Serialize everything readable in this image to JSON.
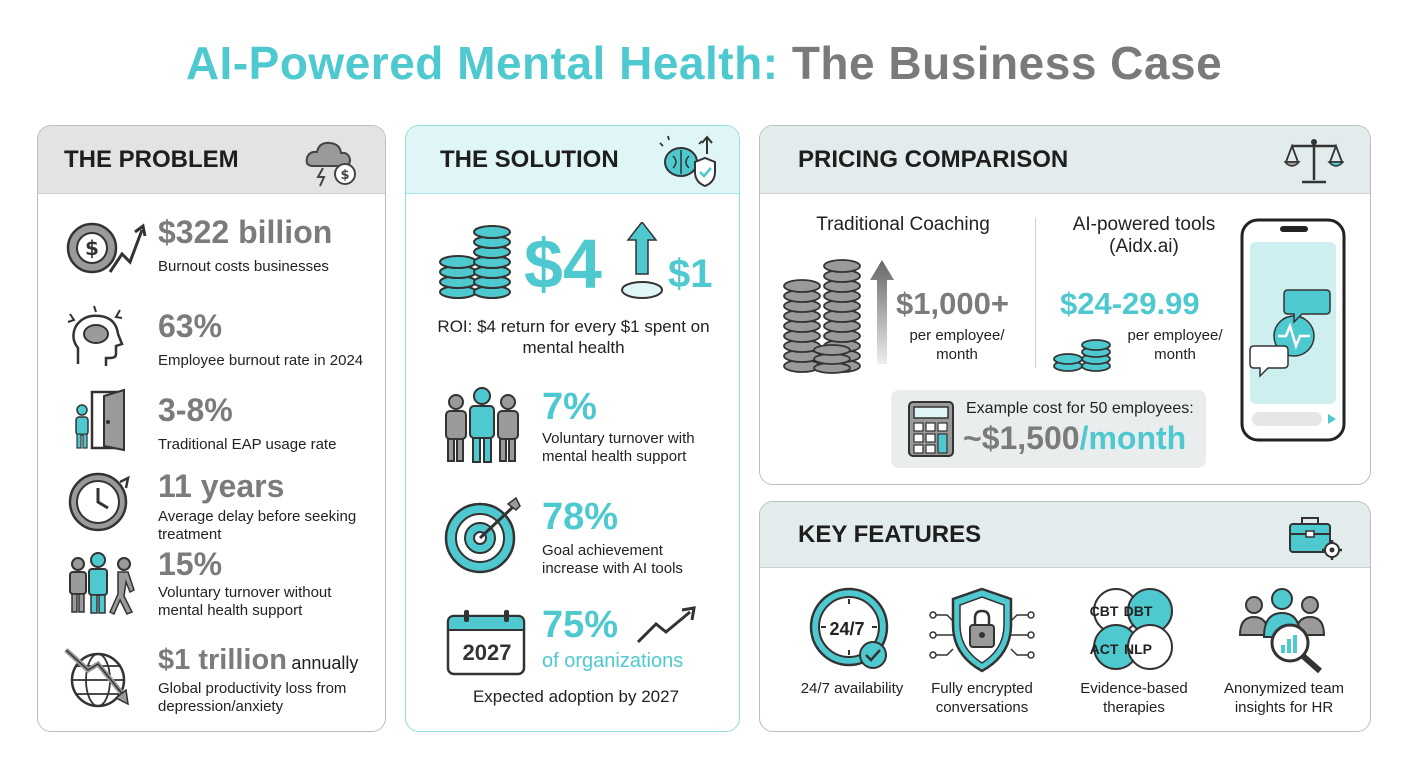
{
  "title": {
    "part1": "AI-Powered Mental Health:",
    "part2": "The Business Case"
  },
  "problem": {
    "heading": "THE PROBLEM",
    "items": [
      {
        "stat": "$322 billion",
        "desc": "Burnout costs businesses",
        "icon": "dollar-cycle-icon"
      },
      {
        "stat": "63%",
        "desc": "Employee burnout rate in 2024",
        "icon": "stressed-head-icon"
      },
      {
        "stat": "3-8%",
        "desc": "Traditional EAP usage rate",
        "icon": "open-door-icon"
      },
      {
        "stat": "11 years",
        "desc": "Average delay before seeking treatment",
        "icon": "clock-icon"
      },
      {
        "stat": "15%",
        "desc": "Voluntary turnover without mental health support",
        "icon": "people-leaving-icon"
      },
      {
        "stat": "$1 trillion",
        "stat_suffix": "annually",
        "desc": "Global productivity loss from depression/anxiety",
        "icon": "globe-decline-icon"
      }
    ]
  },
  "solution": {
    "heading": "THE SOLUTION",
    "roi": {
      "big": "$4",
      "small": "$1",
      "desc": "ROI: $4 return for every $1 spent on mental health"
    },
    "items": [
      {
        "stat": "7%",
        "desc": "Voluntary turnover with mental health support",
        "icon": "team-icon"
      },
      {
        "stat": "78%",
        "desc": "Goal achievement increase with AI tools",
        "icon": "target-icon"
      },
      {
        "stat": "75%",
        "sub": "of organizations",
        "calendar": "2027",
        "desc": "Expected adoption by 2027",
        "icon": "calendar-icon"
      }
    ]
  },
  "pricing": {
    "heading": "PRICING COMPARISON",
    "traditional": {
      "label": "Traditional Coaching",
      "price": "$1,000+",
      "unit": "per employee/ month"
    },
    "ai": {
      "label": "AI-powered tools (Aidx.ai)",
      "price": "$24-29.99",
      "unit": "per employee/ month"
    },
    "example": {
      "label": "Example cost for 50 employees:",
      "price": "~$1,500",
      "per": "/month"
    }
  },
  "features": {
    "heading": "KEY FEATURES",
    "items": [
      {
        "label": "24/7 availability",
        "icon_text": "24/7",
        "icon": "clock-check-icon"
      },
      {
        "label": "Fully encrypted conversations",
        "icon": "shield-lock-icon"
      },
      {
        "label": "Evidence-based therapies",
        "icon": "therapy-venn-icon",
        "venn": [
          "CBT",
          "DBT",
          "ACT",
          "NLP"
        ]
      },
      {
        "label": "Anonymized team insights for HR",
        "icon": "team-insights-icon"
      }
    ]
  },
  "colors": {
    "teal": "#4ec9cf",
    "gray": "#7b7b7b",
    "dark": "#222222"
  }
}
